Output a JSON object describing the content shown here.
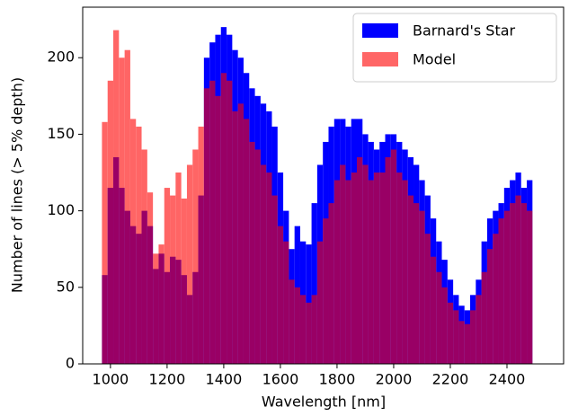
{
  "chart_data": {
    "type": "histogram",
    "xlabel": "Wavelength [nm]",
    "ylabel": "Number of lines (> 5% depth)",
    "bins": [
      970,
      990,
      1010,
      1030,
      1050,
      1070,
      1090,
      1110,
      1130,
      1150,
      1170,
      1190,
      1210,
      1230,
      1250,
      1270,
      1290,
      1310,
      1330,
      1350,
      1370,
      1390,
      1410,
      1430,
      1450,
      1470,
      1490,
      1510,
      1530,
      1550,
      1570,
      1590,
      1610,
      1630,
      1650,
      1670,
      1690,
      1710,
      1730,
      1750,
      1770,
      1790,
      1810,
      1830,
      1850,
      1870,
      1890,
      1910,
      1930,
      1950,
      1970,
      1990,
      2010,
      2030,
      2050,
      2070,
      2090,
      2110,
      2130,
      2150,
      2170,
      2190,
      2210,
      2230,
      2250,
      2270,
      2290,
      2310,
      2330,
      2350,
      2370,
      2390,
      2410,
      2430,
      2450,
      2470,
      2490
    ],
    "series": [
      {
        "name": "Barnard's Star",
        "color": "#0000ff",
        "alpha": 1,
        "values": [
          58,
          115,
          135,
          115,
          100,
          90,
          85,
          100,
          90,
          62,
          72,
          60,
          70,
          68,
          58,
          45,
          60,
          110,
          200,
          210,
          215,
          220,
          215,
          205,
          200,
          190,
          180,
          175,
          170,
          165,
          155,
          125,
          100,
          75,
          90,
          80,
          78,
          105,
          130,
          145,
          155,
          160,
          160,
          155,
          160,
          160,
          150,
          145,
          140,
          145,
          150,
          150,
          145,
          140,
          135,
          130,
          120,
          110,
          95,
          80,
          68,
          55,
          45,
          38,
          35,
          45,
          55,
          80,
          95,
          100,
          105,
          115,
          120,
          125,
          115,
          120
        ]
      },
      {
        "name": "Model",
        "color": "#ff0000",
        "alpha": 0.6,
        "values": [
          158,
          185,
          218,
          200,
          205,
          160,
          155,
          140,
          112,
          72,
          78,
          115,
          110,
          125,
          108,
          130,
          140,
          155,
          180,
          185,
          175,
          190,
          185,
          165,
          170,
          160,
          145,
          140,
          130,
          125,
          110,
          90,
          80,
          55,
          50,
          45,
          40,
          45,
          80,
          95,
          105,
          120,
          130,
          120,
          125,
          135,
          130,
          120,
          125,
          125,
          135,
          140,
          125,
          120,
          110,
          105,
          100,
          85,
          70,
          60,
          50,
          40,
          35,
          28,
          26,
          35,
          45,
          60,
          75,
          85,
          95,
          100,
          105,
          110,
          105,
          100
        ]
      }
    ],
    "xlim": [
      902,
      2600
    ],
    "ylim": [
      0,
      233
    ],
    "xticks": [
      1000,
      1200,
      1400,
      1600,
      1800,
      2000,
      2200,
      2400
    ],
    "yticks": [
      0,
      50,
      100,
      150,
      200
    ],
    "legend": "upper right"
  }
}
